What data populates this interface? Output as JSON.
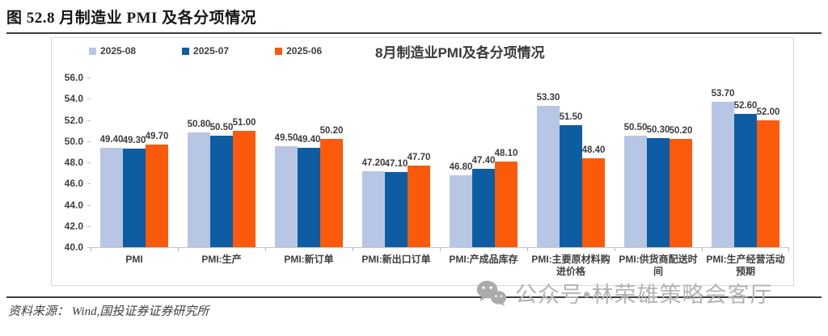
{
  "figure": {
    "title": "图 52.8 月制造业 PMI 及各分项情况",
    "source": "资料来源： Wind,国投证券证券研究所",
    "watermark": "公众号•林荣雄策略会客厅"
  },
  "colors": {
    "series_2025_08": "#b8c6e5",
    "series_2025_07": "#0e5da3",
    "series_2025_06": "#fa5a0a",
    "axis_text": "#3f3f3f",
    "divider": "#3d3d3d",
    "watermark_gray": "#b4b4b4"
  },
  "chart_data": {
    "type": "bar",
    "title": "8月制造业PMI及各分项情况",
    "categories": [
      "PMI",
      "PMI:生产",
      "PMI:新订单",
      "PMI:新出口订单",
      "PMI:产成品库存",
      "PMI:主要原材料购进价格",
      "PMI:供货商配送时间",
      "PMI:生产经营活动预期"
    ],
    "series": [
      {
        "name": "2025-08",
        "color": "#b8c6e5",
        "values": [
          49.4,
          50.8,
          49.5,
          47.2,
          46.8,
          53.3,
          50.5,
          53.7
        ]
      },
      {
        "name": "2025-07",
        "color": "#0e5da3",
        "values": [
          49.3,
          50.5,
          49.4,
          47.1,
          47.4,
          51.5,
          50.3,
          52.6
        ]
      },
      {
        "name": "2025-06",
        "color": "#fa5a0a",
        "values": [
          49.7,
          51.0,
          50.2,
          47.7,
          48.1,
          48.4,
          50.2,
          52.0
        ]
      }
    ],
    "ylim": [
      40.0,
      56.0
    ],
    "ytick_step": 2.0,
    "ytick_labels": [
      "56.0",
      "54.0",
      "52.0",
      "50.0",
      "48.0",
      "46.0",
      "44.0",
      "42.0",
      "40.0"
    ],
    "grid": false,
    "legend_position": "top-left",
    "value_labels": true,
    "value_label_decimals": 2
  }
}
